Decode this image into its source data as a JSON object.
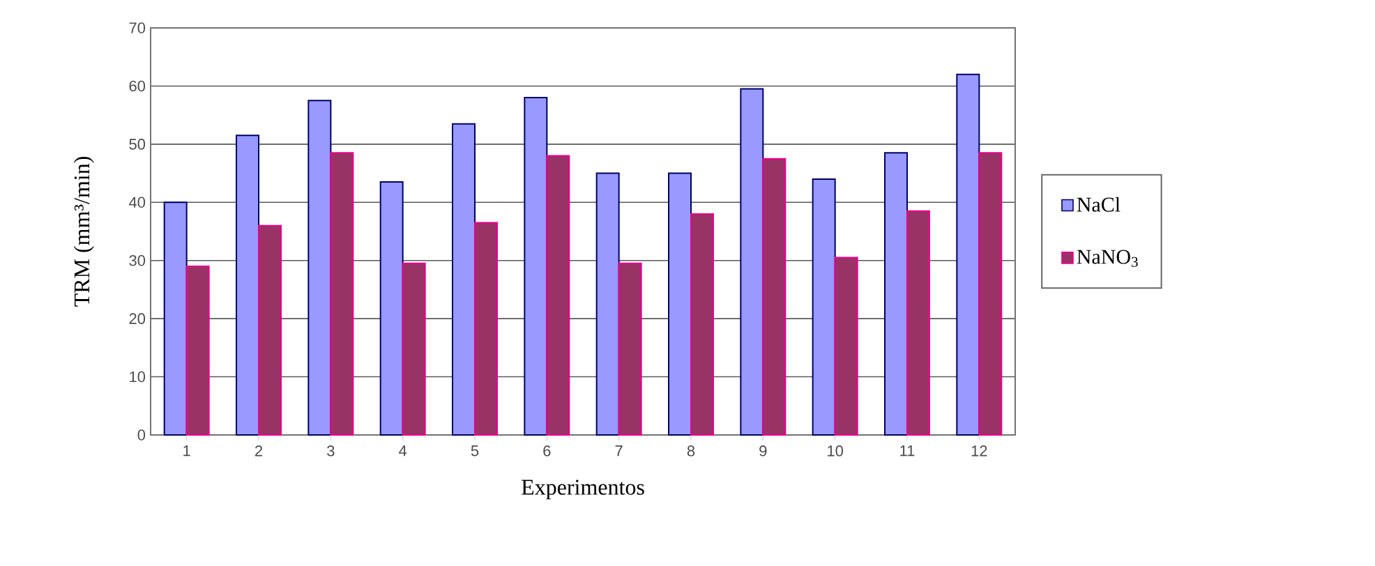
{
  "chart_data": {
    "type": "bar",
    "xlabel": "Experimentos",
    "ylabel": "TRM (mm³/min)",
    "categories": [
      "1",
      "2",
      "3",
      "4",
      "5",
      "6",
      "7",
      "8",
      "9",
      "10",
      "11",
      "12"
    ],
    "series": [
      {
        "name": "NaCl",
        "color": "#9999ff",
        "values": [
          40,
          51.5,
          57.5,
          43.5,
          53.5,
          58,
          45,
          45,
          59.5,
          44,
          48.5,
          62
        ]
      },
      {
        "name": "NaNO$_{3}$",
        "color": "#993366",
        "values": [
          29,
          36,
          48.5,
          29.5,
          36.5,
          48,
          29.5,
          38,
          47.5,
          30.5,
          38.5,
          48.5
        ]
      }
    ],
    "ylim": [
      0,
      70
    ],
    "yticks": [
      0,
      10,
      20,
      30,
      40,
      50,
      60,
      70
    ],
    "grid": "y",
    "legend": "right"
  }
}
